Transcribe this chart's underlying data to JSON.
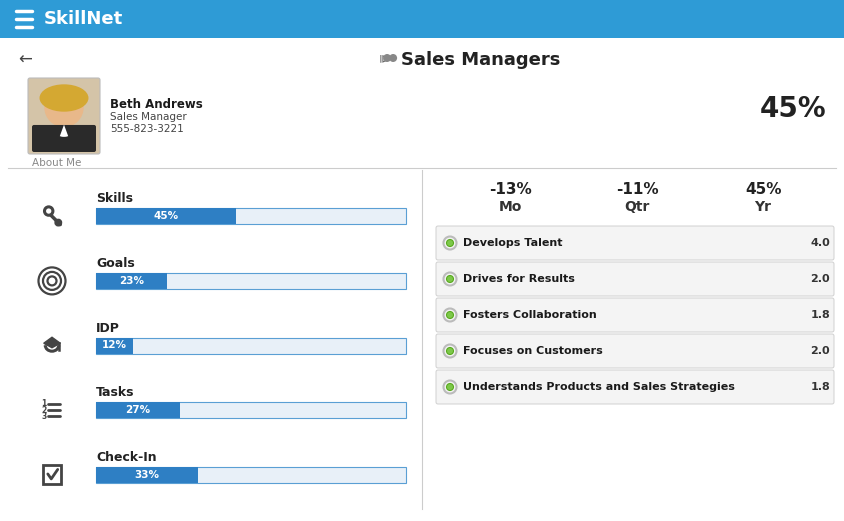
{
  "header_color": "#2e9bd6",
  "header_text": "SkillNet",
  "header_text_color": "#ffffff",
  "bg_color": "#ffffff",
  "title": "Sales Managers",
  "back_arrow": "←",
  "person_name": "Beth Andrews",
  "person_title": "Sales Manager",
  "person_phone": "555-823-3221",
  "about_label": "About Me",
  "overall_pct": "45%",
  "skills": [
    {
      "label": "Skills",
      "pct": 45
    },
    {
      "label": "Goals",
      "pct": 23
    },
    {
      "label": "IDP",
      "pct": 12
    },
    {
      "label": "Tasks",
      "pct": 27
    },
    {
      "label": "Check-In",
      "pct": 33
    }
  ],
  "bar_color": "#2e7fc4",
  "bar_bg_color": "#e8f0f8",
  "bar_border_color": "#5a9fd4",
  "stats": [
    {
      "value": "-13%",
      "label": "Mo"
    },
    {
      "value": "-11%",
      "label": "Qtr"
    },
    {
      "value": "45%",
      "label": "Yr"
    }
  ],
  "items": [
    {
      "name": "Develops Talent",
      "score": "4.0"
    },
    {
      "name": "Drives for Results",
      "score": "2.0"
    },
    {
      "name": "Fosters Collaboration",
      "score": "1.8"
    },
    {
      "name": "Focuses on Customers",
      "score": "2.0"
    },
    {
      "name": "Understands Products and Sales Strategies",
      "score": "1.8"
    }
  ],
  "item_bg_color": "#f4f4f4",
  "item_border_color": "#d0d0d0",
  "dot_outer_color": "#bbbbbb",
  "dot_inner_color": "#7dc84a",
  "separator_color": "#cccccc"
}
